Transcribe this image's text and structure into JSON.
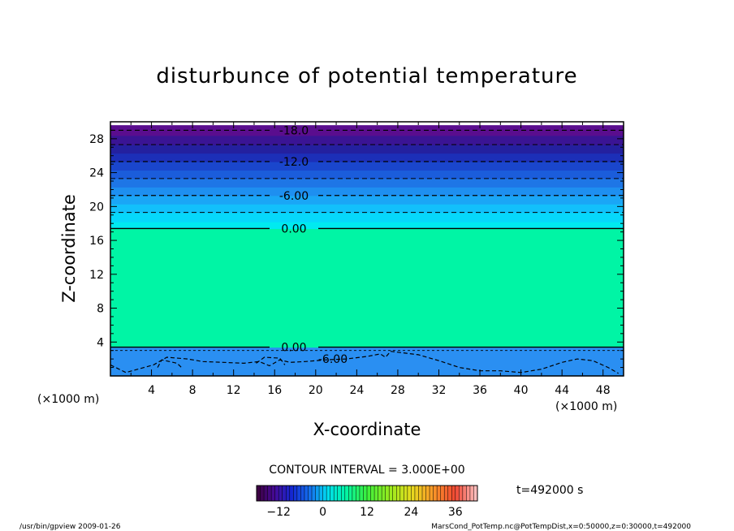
{
  "chart_data": {
    "type": "heatmap",
    "title": "disturbunce of potential temperature",
    "xlabel": "X-coordinate",
    "ylabel": "Z-coordinate",
    "x_unit": "(×1000 m)",
    "y_unit": "(×1000 m)",
    "xlim": [
      0,
      50
    ],
    "ylim": [
      0,
      30
    ],
    "x_ticks": [
      4,
      8,
      12,
      16,
      20,
      24,
      28,
      32,
      36,
      40,
      44,
      48
    ],
    "y_ticks": [
      4,
      8,
      12,
      16,
      20,
      24,
      28
    ],
    "contour_interval_text": "CONTOUR INTERVAL = 3.000E+00",
    "time_label": "t=492000 s",
    "colorbar": {
      "range": [
        -18,
        42
      ],
      "ticks": [
        -12,
        0,
        12,
        24,
        36
      ]
    },
    "bands": [
      {
        "z0": 0.0,
        "z1": 3.4,
        "value": -4,
        "color": "#2a8ff2"
      },
      {
        "z0": 3.4,
        "z1": 17.4,
        "value": 1.5,
        "color": "#00f5a5"
      },
      {
        "z0": 17.4,
        "z1": 18.2,
        "value": -1,
        "color": "#00eaf0"
      },
      {
        "z0": 18.2,
        "z1": 19.3,
        "value": -2,
        "color": "#06d8fb"
      },
      {
        "z0": 19.3,
        "z1": 20.3,
        "value": -3.5,
        "color": "#12c0fb"
      },
      {
        "z0": 20.3,
        "z1": 21.3,
        "value": -5,
        "color": "#1aa6f6"
      },
      {
        "z0": 21.3,
        "z1": 22.3,
        "value": -6.5,
        "color": "#1e8ff0"
      },
      {
        "z0": 22.3,
        "z1": 23.3,
        "value": -8,
        "color": "#1e76e6"
      },
      {
        "z0": 23.3,
        "z1": 24.3,
        "value": -10,
        "color": "#1b5ddb"
      },
      {
        "z0": 24.3,
        "z1": 25.3,
        "value": -12,
        "color": "#1a46cc"
      },
      {
        "z0": 25.3,
        "z1": 26.3,
        "value": -13.5,
        "color": "#1c2fb8"
      },
      {
        "z0": 26.3,
        "z1": 27.3,
        "value": -15,
        "color": "#24209f"
      },
      {
        "z0": 27.3,
        "z1": 28.4,
        "value": -16.5,
        "color": "#3a1494"
      },
      {
        "z0": 28.4,
        "z1": 29.6,
        "value": -18,
        "color": "#5a0d8e"
      }
    ],
    "contours": [
      {
        "z": 17.4,
        "label": "0.00",
        "style": "solid"
      },
      {
        "z": 21.3,
        "label": "-6.00",
        "style": "dashed"
      },
      {
        "z": 25.3,
        "label": "-12.0",
        "style": "dashed"
      },
      {
        "z": 29.0,
        "label": "-18.0",
        "style": "dashed"
      },
      {
        "z": 3.4,
        "label": "0.00",
        "style": "solid"
      },
      {
        "z": 2.0,
        "label": "-6.00",
        "style": "dashed"
      }
    ],
    "extra_dashed_levels": [
      19.3,
      23.3,
      27.3
    ],
    "extra_solid_levels": [
      3.0
    ],
    "lower_contour_path": [
      [
        0,
        1.3
      ],
      [
        1.5,
        0.4
      ],
      [
        4.2,
        1.3
      ],
      [
        5.5,
        2.2
      ],
      [
        7.5,
        2.0
      ],
      [
        9,
        1.7
      ],
      [
        11,
        1.6
      ],
      [
        13,
        1.5
      ],
      [
        14.5,
        1.7
      ],
      [
        15.5,
        1.2
      ],
      [
        16.5,
        1.9
      ],
      [
        17.5,
        1.6
      ],
      [
        19,
        1.7
      ],
      [
        21,
        1.9
      ],
      [
        23,
        2.0
      ],
      [
        25,
        2.3
      ],
      [
        26.3,
        2.6
      ],
      [
        26.8,
        2.2
      ],
      [
        27.3,
        2.9
      ],
      [
        28,
        2.8
      ],
      [
        30,
        2.5
      ],
      [
        32,
        1.8
      ],
      [
        34,
        1.0
      ],
      [
        36,
        0.6
      ],
      [
        38,
        0.6
      ],
      [
        40,
        0.4
      ],
      [
        42,
        0.8
      ],
      [
        44,
        1.6
      ],
      [
        45.5,
        2.0
      ],
      [
        47,
        1.8
      ],
      [
        48.5,
        1.0
      ],
      [
        49.5,
        0.3
      ]
    ],
    "lower_contour_path2": [
      [
        4.6,
        1.0
      ],
      [
        5.0,
        1.9
      ],
      [
        6.5,
        1.5
      ],
      [
        7.0,
        0.9
      ]
    ],
    "lower_contour_path3": [
      [
        14.2,
        1.5
      ],
      [
        15.0,
        2.2
      ],
      [
        16.5,
        2.1
      ],
      [
        17.0,
        1.3
      ]
    ]
  },
  "footer": {
    "left": "/usr/bin/gpview   2009-01-26",
    "right": "MarsCond_PotTemp.nc@PotTempDist,x=0:50000,z=0:30000,t=492000"
  }
}
